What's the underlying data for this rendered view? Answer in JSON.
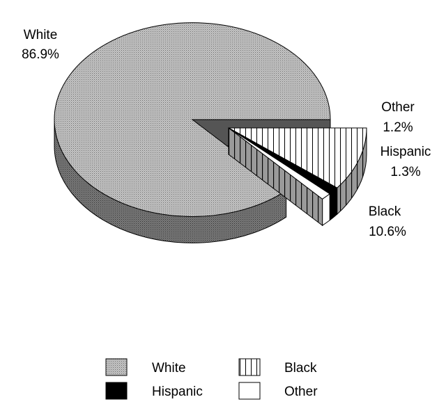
{
  "chart_data": {
    "type": "pie",
    "title": "",
    "categories": [
      "White",
      "Black",
      "Hispanic",
      "Other"
    ],
    "values": [
      86.9,
      10.6,
      1.3,
      1.2
    ],
    "slice_labels": {
      "White": [
        "White",
        "86.9%"
      ],
      "Black": [
        "Black",
        "10.6%"
      ],
      "Hispanic": [
        "Hispanic",
        "1.3%"
      ],
      "Other": [
        "Other",
        "1.2%"
      ]
    },
    "exploded": [
      "Black",
      "Hispanic",
      "Other"
    ],
    "three_d": true,
    "legend": {
      "position": "bottom",
      "entries": [
        {
          "name": "White",
          "fill": "stipple-gray"
        },
        {
          "name": "Black",
          "fill": "vertical-stripes"
        },
        {
          "name": "Hispanic",
          "fill": "solid-black"
        },
        {
          "name": "Other",
          "fill": "white"
        }
      ]
    },
    "colors": {
      "white_fill": "#a9a9a9",
      "white_side": "#5e5e5e",
      "black_side": "#8c8c8c",
      "hispanic": "#000000",
      "other": "#ffffff"
    }
  }
}
